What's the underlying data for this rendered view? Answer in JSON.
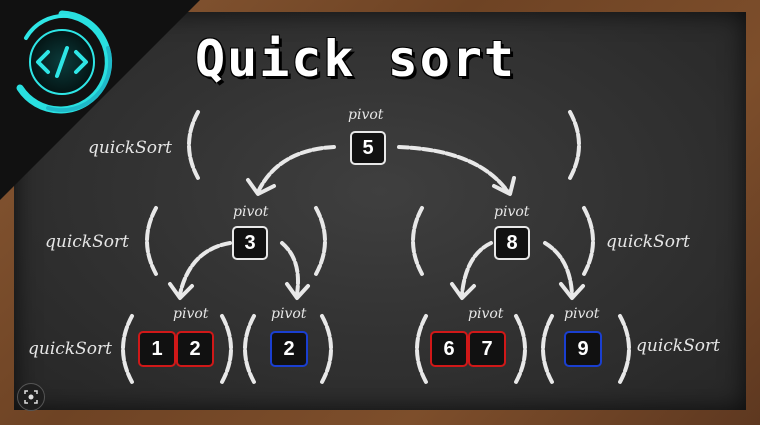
{
  "title": "Quick sort",
  "labels": {
    "quicksort": "quickSort",
    "pivot": "pivot"
  },
  "nodes": {
    "root": "5",
    "left": "3",
    "right": "8",
    "left_left_a": "1",
    "left_left_b": "2",
    "left_right": "2",
    "right_left_a": "6",
    "right_left_b": "7",
    "right_right": "9"
  },
  "colors": {
    "board": "#333333",
    "chalk": "#ececec",
    "red_box": "#d01818",
    "blue_box": "#1a3fd0",
    "logo": "#2ee6e6"
  },
  "icons": {
    "logo": "code-brackets-icon",
    "lens": "lens-search-icon"
  }
}
